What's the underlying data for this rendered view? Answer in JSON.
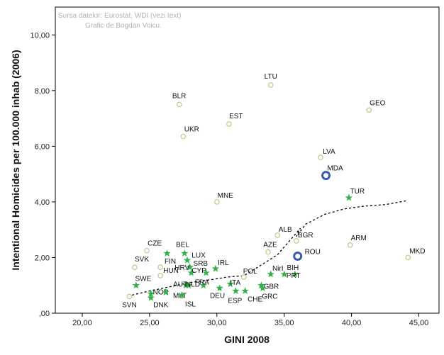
{
  "chart_data": {
    "type": "scatter",
    "title": "",
    "source_lines": [
      "Sursa datelor: Eurostat, WDI (vezi text)",
      "Grafic de Bogdan Voicu."
    ],
    "xlabel": "GINI 2008",
    "ylabel": "Intentional Homicides per 100.000 inhab (2006)",
    "xlim": [
      18,
      46.5
    ],
    "ylim": [
      0,
      11
    ],
    "xticks": [
      20,
      25,
      30,
      35,
      40,
      45
    ],
    "xtick_labels": [
      "20,00",
      "25,00",
      "30,00",
      "35,00",
      "40,00",
      "45,00"
    ],
    "yticks": [
      0,
      2,
      4,
      6,
      8,
      10
    ],
    "ytick_labels": [
      ",00",
      "2,00",
      "4,00",
      "6,00",
      "8,00",
      "10,00"
    ],
    "colors": {
      "open": "#c8c487",
      "star": "#33b24a",
      "highlight": "#3b5cab",
      "trend": "#000000"
    },
    "series": [
      {
        "name": "other",
        "marker": "open-circle",
        "points": [
          {
            "label": "LTU",
            "x": 34.0,
            "y": 8.2
          },
          {
            "label": "BLR",
            "x": 27.2,
            "y": 7.5
          },
          {
            "label": "GEO",
            "x": 41.3,
            "y": 7.3
          },
          {
            "label": "EST",
            "x": 30.9,
            "y": 6.8
          },
          {
            "label": "UKR",
            "x": 27.5,
            "y": 6.35
          },
          {
            "label": "LVA",
            "x": 37.7,
            "y": 5.6
          },
          {
            "label": "MNE",
            "x": 30.0,
            "y": 4.0
          },
          {
            "label": "ALB",
            "x": 34.5,
            "y": 2.8
          },
          {
            "label": "BGR",
            "x": 35.9,
            "y": 2.6
          },
          {
            "label": "ARM",
            "x": 39.9,
            "y": 2.45
          },
          {
            "label": "CZE",
            "x": 24.8,
            "y": 2.25
          },
          {
            "label": "AZE",
            "x": 33.8,
            "y": 2.2
          },
          {
            "label": "MKD",
            "x": 44.2,
            "y": 2.0
          },
          {
            "label": "SVK",
            "x": 23.9,
            "y": 1.65
          },
          {
            "label": "FIN",
            "x": 25.8,
            "y": 1.65
          },
          {
            "label": "HUN",
            "x": 25.8,
            "y": 1.35
          },
          {
            "label": "POL",
            "x": 32.0,
            "y": 1.3
          },
          {
            "label": "SVN",
            "x": 23.5,
            "y": 0.6
          }
        ]
      },
      {
        "name": "group",
        "marker": "star",
        "points": [
          {
            "label": "BEL",
            "x": 26.3,
            "y": 2.15
          },
          {
            "label": "",
            "x": 27.6,
            "y": 2.15
          },
          {
            "label": "LUX",
            "x": 27.8,
            "y": 1.9
          },
          {
            "label": "SRB",
            "x": 28.0,
            "y": 1.65
          },
          {
            "label": "HRV",
            "x": 28.1,
            "y": 1.45
          },
          {
            "label": "IRL",
            "x": 29.9,
            "y": 1.6
          },
          {
            "label": "CYP",
            "x": 29.2,
            "y": 1.45
          },
          {
            "label": "NirI",
            "x": 34.0,
            "y": 1.4
          },
          {
            "label": "BIH",
            "x": 35.8,
            "y": 1.4
          },
          {
            "label": "SWE",
            "x": 24.0,
            "y": 1.0
          },
          {
            "label": "AUT",
            "x": 27.7,
            "y": 1.0
          },
          {
            "label": "NLD",
            "x": 27.9,
            "y": 1.0
          },
          {
            "label": "FRA",
            "x": 29.0,
            "y": 1.0
          },
          {
            "label": "ITA",
            "x": 31.0,
            "y": 1.05
          },
          {
            "label": "GBR",
            "x": 33.3,
            "y": 1.0
          },
          {
            "label": "NOR",
            "x": 25.1,
            "y": 0.7
          },
          {
            "label": "DEU",
            "x": 30.2,
            "y": 0.9
          },
          {
            "label": "MLT",
            "x": 26.2,
            "y": 0.75
          },
          {
            "label": "ESP",
            "x": 31.4,
            "y": 0.8
          },
          {
            "label": "CHE",
            "x": 32.1,
            "y": 0.8
          },
          {
            "label": "GRC",
            "x": 33.4,
            "y": 0.9
          },
          {
            "label": "PRT",
            "x": 35.0,
            "y": 1.4
          },
          {
            "label": "DNK",
            "x": 25.1,
            "y": 0.55
          },
          {
            "label": "ISL",
            "x": 27.4,
            "y": 0.65
          }
        ]
      },
      {
        "name": "highlight",
        "marker": "ring",
        "points": [
          {
            "label": "MDA",
            "x": 38.1,
            "y": 4.95
          },
          {
            "label": "ROU",
            "x": 36.0,
            "y": 2.05
          }
        ]
      },
      {
        "name": "TUR",
        "marker": "star",
        "points": [
          {
            "label": "TUR",
            "x": 39.8,
            "y": 4.15
          }
        ]
      }
    ],
    "trend": {
      "name": "fit line",
      "style": "dashed",
      "points": [
        [
          23.7,
          0.65
        ],
        [
          25,
          0.8
        ],
        [
          26.5,
          0.95
        ],
        [
          28,
          1.1
        ],
        [
          29.5,
          1.2
        ],
        [
          30.8,
          1.3
        ],
        [
          32,
          1.35
        ],
        [
          33.2,
          1.7
        ],
        [
          34.5,
          2.1
        ],
        [
          35.4,
          2.6
        ],
        [
          36.2,
          3.05
        ],
        [
          35.9,
          2.75
        ],
        [
          36.6,
          3.2
        ],
        [
          38,
          3.55
        ],
        [
          39.5,
          3.75
        ],
        [
          41,
          3.85
        ],
        [
          42.5,
          3.9
        ],
        [
          44.2,
          4.05
        ]
      ]
    }
  }
}
